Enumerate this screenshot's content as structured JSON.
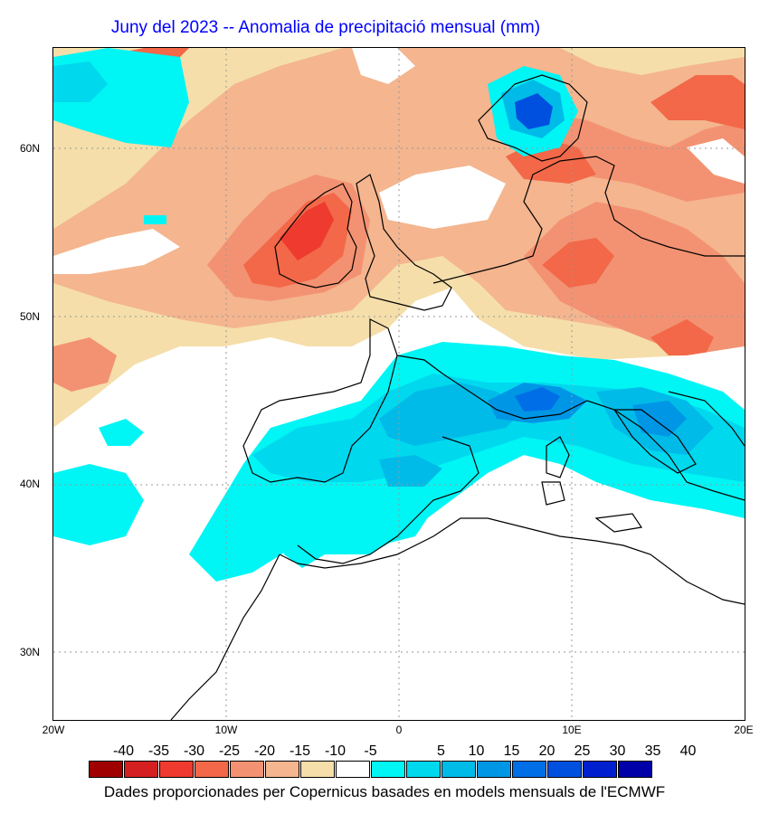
{
  "title": "Juny del 2023 -- Anomalia de precipitació mensual (mm)",
  "latitude_labels": [
    "60N",
    "50N",
    "40N",
    "30N"
  ],
  "longitude_labels": [
    "20W",
    "10W",
    "0",
    "10E",
    "20E"
  ],
  "colorbar": {
    "labels": [
      "-40",
      "-35",
      "-30",
      "-25",
      "-20",
      "-15",
      "-10",
      "-5",
      "5",
      "10",
      "15",
      "20",
      "25",
      "30",
      "35",
      "40"
    ],
    "colors": [
      "#a00000",
      "#d42020",
      "#ee3a2f",
      "#f26848",
      "#f39272",
      "#f4b58f",
      "#f5deaa",
      "#ffffff",
      "#00f5f5",
      "#00d8ee",
      "#00bbe8",
      "#0096e6",
      "#006ee6",
      "#0050e0",
      "#0020d0",
      "#0000a8"
    ]
  },
  "credit": "Dades proporcionades per Copernicus basades en models mensuals de l'ECMWF"
}
